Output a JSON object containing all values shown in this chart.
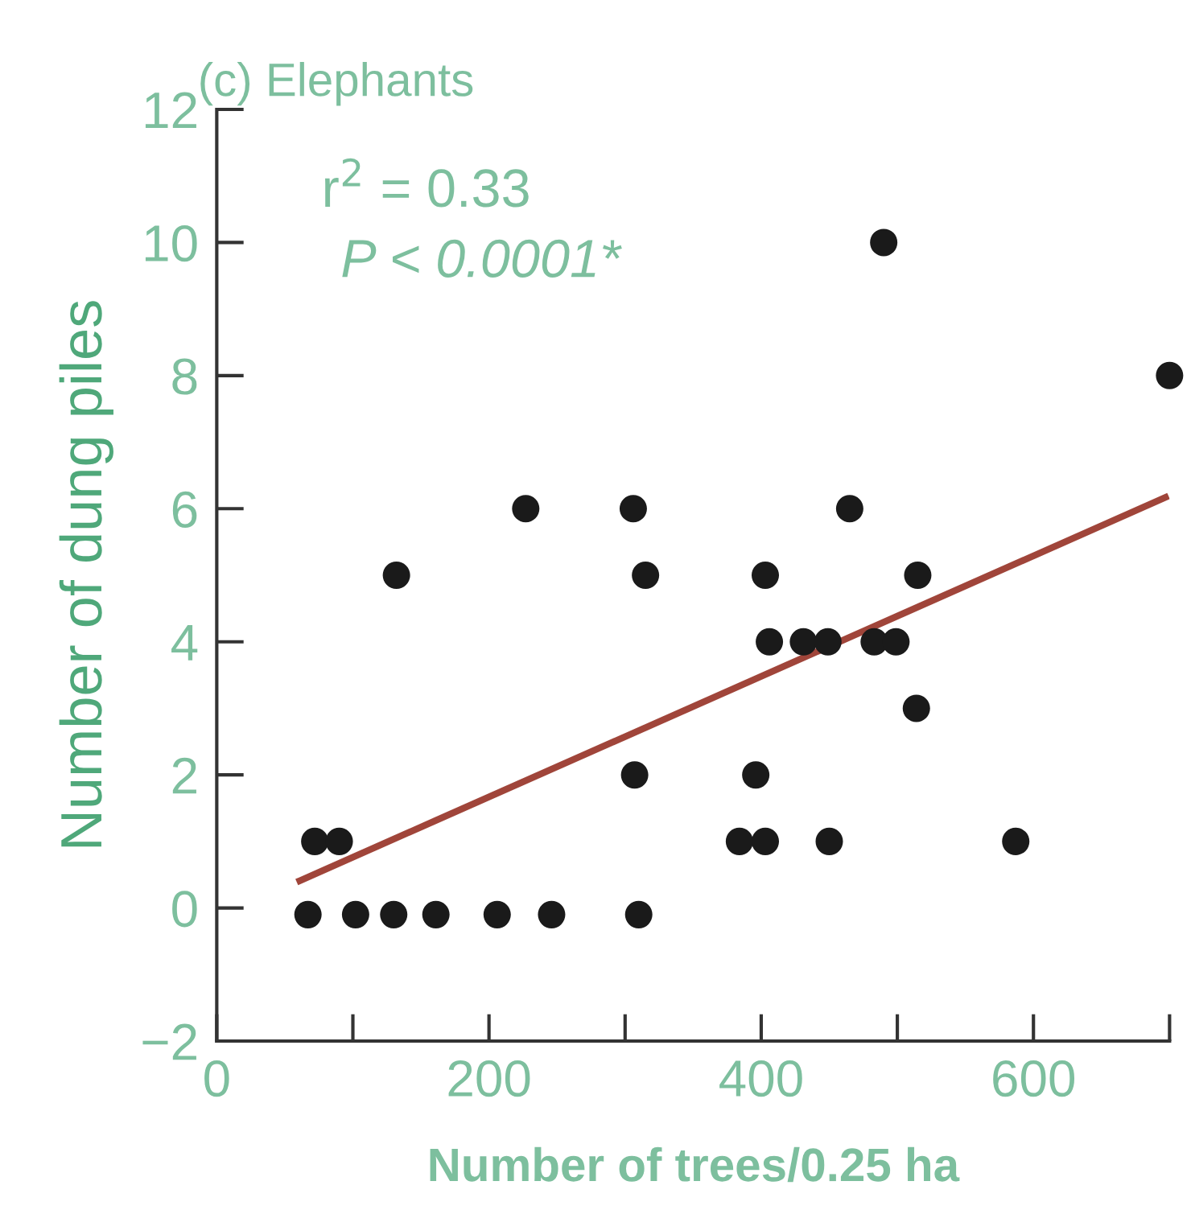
{
  "chart_data": {
    "type": "scatter",
    "title": "(c) Elephants",
    "xlabel": "Number of trees/0.25 ha",
    "ylabel": "Number of dung piles",
    "annotations": [
      "r$^{2}$ = 0.33",
      "P < 0.0001*"
    ],
    "xlim": [
      0,
      700
    ],
    "ylim": [
      -2,
      12
    ],
    "xticks": [
      0,
      200,
      400,
      600
    ],
    "yticks": [
      {
        "value": -2,
        "label": "−2"
      },
      0,
      2,
      4,
      6,
      8,
      10,
      12
    ],
    "grid": false,
    "legend": false,
    "marker": "circle",
    "series": [
      {
        "type": "scatter",
        "color": "#1a1a1a",
        "x": [
          67,
          102,
          130,
          161,
          206,
          246,
          310,
          72,
          90,
          384,
          403,
          450,
          587,
          307,
          396,
          514,
          406,
          431,
          449,
          483,
          499,
          132,
          315,
          403,
          515,
          227,
          306,
          465,
          490,
          700
        ],
        "values": [
          -0.1,
          -0.1,
          -0.1,
          -0.1,
          -0.1,
          -0.1,
          -0.1,
          1,
          1,
          1,
          1,
          1,
          1,
          2,
          2,
          3,
          4,
          4,
          4,
          4,
          4,
          5,
          5,
          5,
          5,
          6,
          6,
          6,
          10,
          8
        ]
      },
      {
        "type": "line",
        "color": "#a0453a",
        "marker": "none",
        "line_style": "solid",
        "x": [
          61,
          697
        ],
        "values": [
          0.41,
          6.17
        ]
      }
    ]
  }
}
